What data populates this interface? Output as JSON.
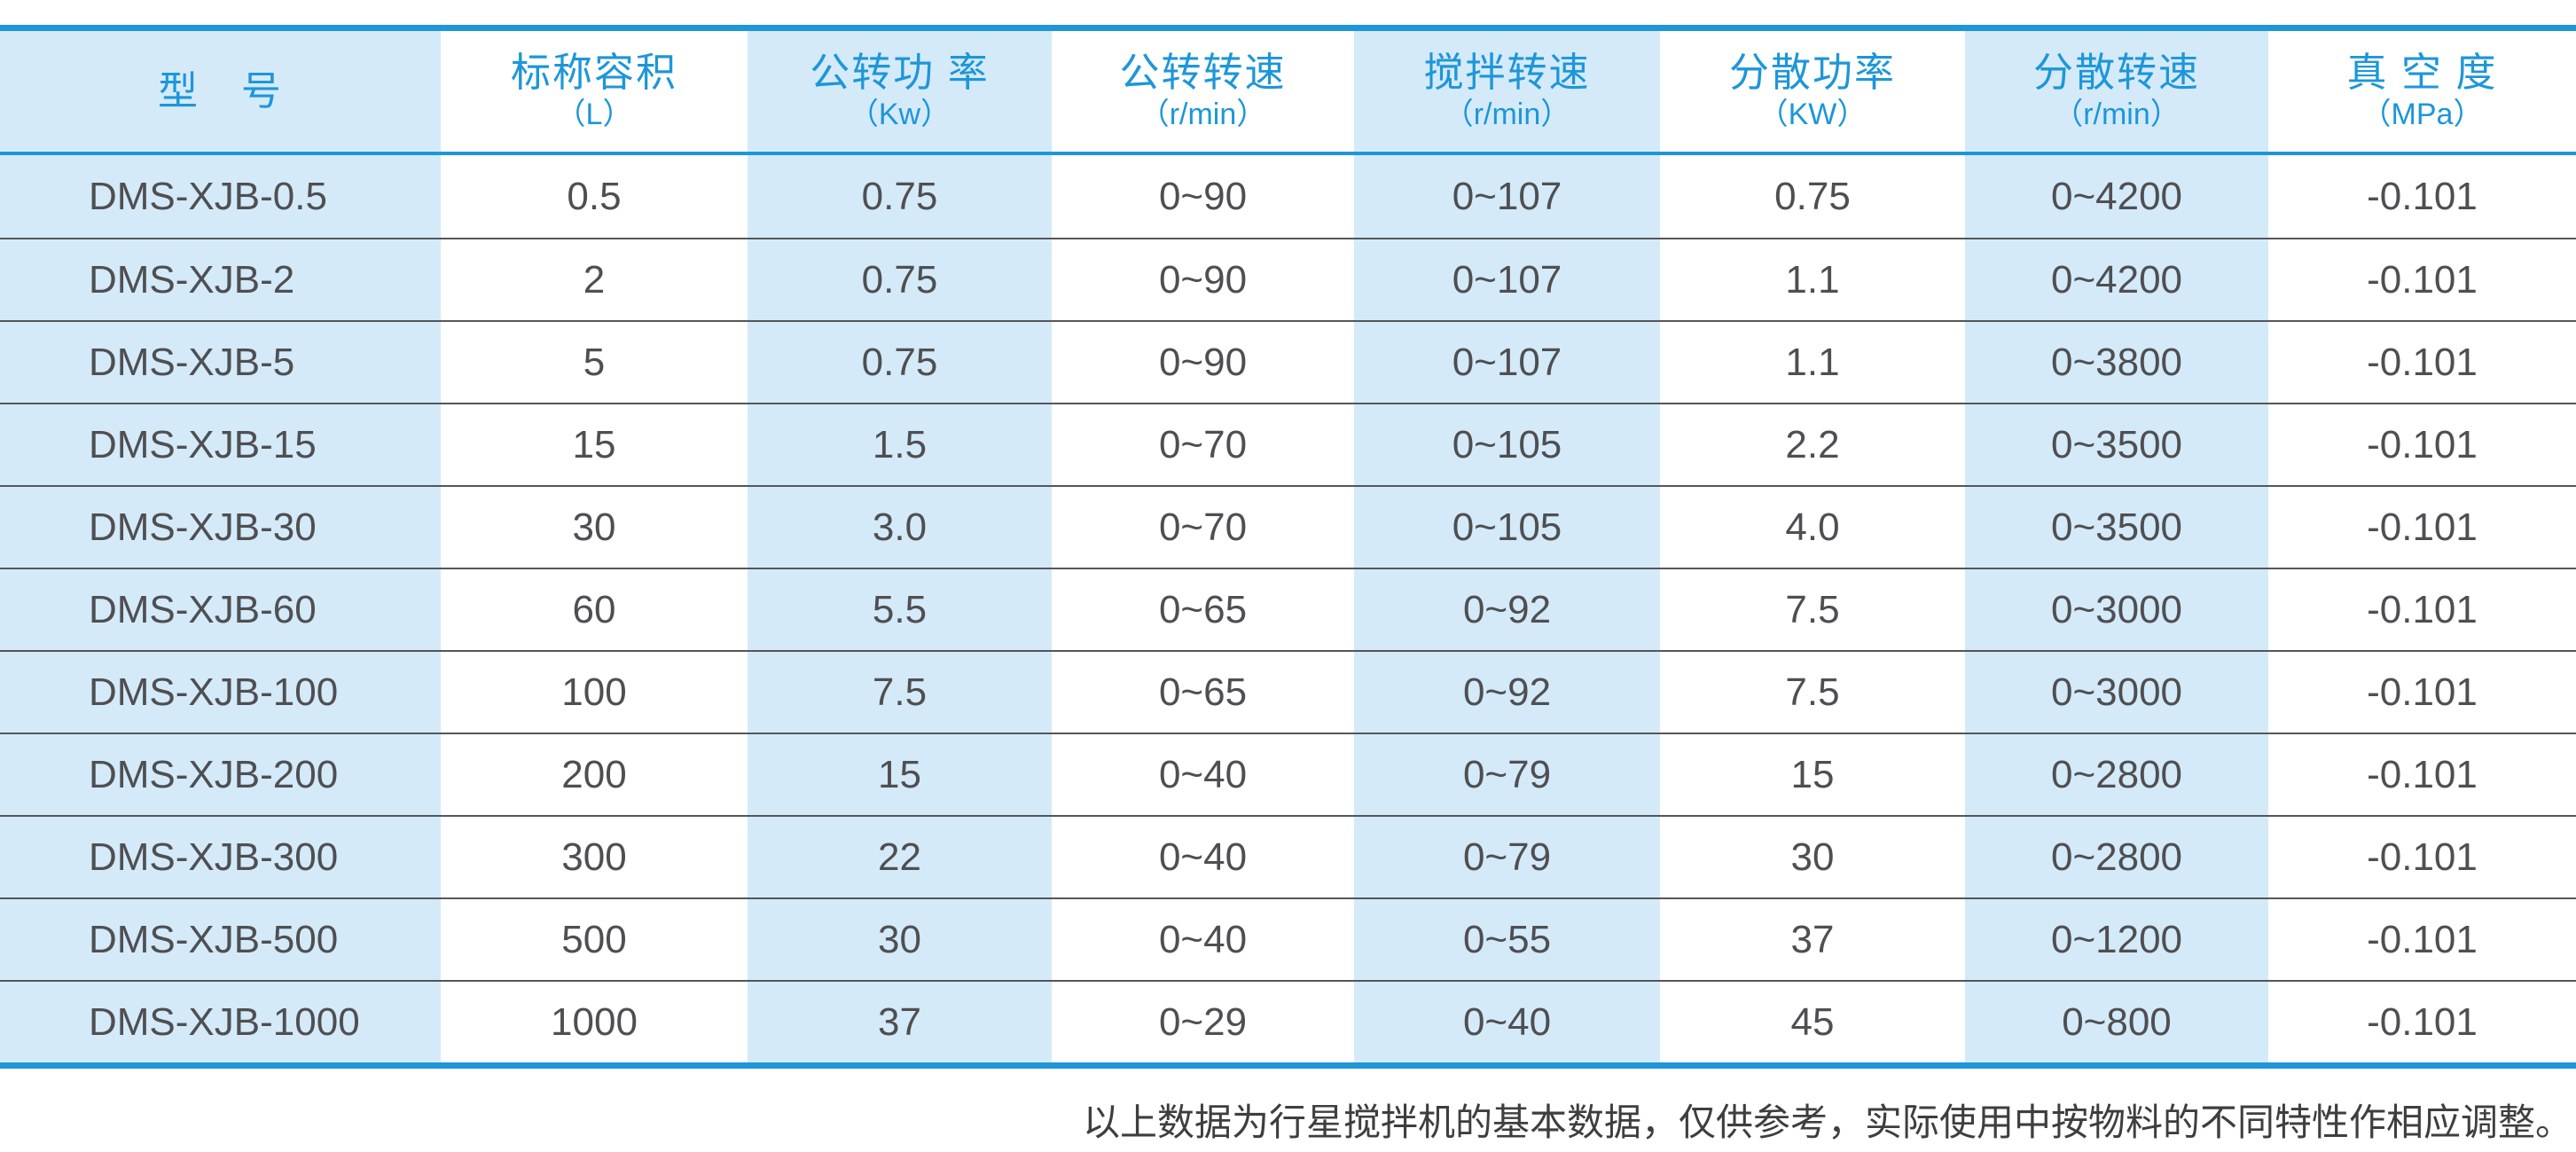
{
  "table": {
    "columns": [
      {
        "key": "model",
        "label": "型　号",
        "unit": ""
      },
      {
        "key": "nominal-capacity",
        "label": "标称容积",
        "unit": "（L）"
      },
      {
        "key": "revolution-power",
        "label": "公转功 率",
        "unit": "（Kw）"
      },
      {
        "key": "revolution-speed",
        "label": "公转转速",
        "unit": "（r/min）"
      },
      {
        "key": "stirring-speed",
        "label": "搅拌转速",
        "unit": "（r/min）"
      },
      {
        "key": "dispersion-power",
        "label": "分散功率",
        "unit": "（KW）"
      },
      {
        "key": "dispersion-speed",
        "label": "分散转速",
        "unit": "（r/min）"
      },
      {
        "key": "vacuum-degree",
        "label": "真 空 度",
        "unit": "（MPa）"
      }
    ],
    "rows": [
      [
        "DMS-XJB-0.5",
        "0.5",
        "0.75",
        "0~90",
        "0~107",
        "0.75",
        "0~4200",
        "-0.101"
      ],
      [
        "DMS-XJB-2",
        "2",
        "0.75",
        "0~90",
        "0~107",
        "1.1",
        "0~4200",
        "-0.101"
      ],
      [
        "DMS-XJB-5",
        "5",
        "0.75",
        "0~90",
        "0~107",
        "1.1",
        "0~3800",
        "-0.101"
      ],
      [
        "DMS-XJB-15",
        "15",
        "1.5",
        "0~70",
        "0~105",
        "2.2",
        "0~3500",
        "-0.101"
      ],
      [
        "DMS-XJB-30",
        "30",
        "3.0",
        "0~70",
        "0~105",
        "4.0",
        "0~3500",
        "-0.101"
      ],
      [
        "DMS-XJB-60",
        "60",
        "5.5",
        "0~65",
        "0~92",
        "7.5",
        "0~3000",
        "-0.101"
      ],
      [
        "DMS-XJB-100",
        "100",
        "7.5",
        "0~65",
        "0~92",
        "7.5",
        "0~3000",
        "-0.101"
      ],
      [
        "DMS-XJB-200",
        "200",
        "15",
        "0~40",
        "0~79",
        "15",
        "0~2800",
        "-0.101"
      ],
      [
        "DMS-XJB-300",
        "300",
        "22",
        "0~40",
        "0~79",
        "30",
        "0~2800",
        "-0.101"
      ],
      [
        "DMS-XJB-500",
        "500",
        "30",
        "0~40",
        "0~55",
        "37",
        "0~1200",
        "-0.101"
      ],
      [
        "DMS-XJB-1000",
        "1000",
        "37",
        "0~29",
        "0~40",
        "45",
        "0~800",
        "-0.101"
      ]
    ]
  },
  "footer": {
    "note": "以上数据为行星搅拌机的基本数据，仅供参考，实际使用中按物料的不同特性作相应调整。"
  },
  "colors": {
    "accent_blue": "#1e96d8",
    "band_light_blue": "#d4eaf9",
    "cell_text": "#4f4f52",
    "row_separator": "#55565a",
    "note_text": "#3e3e3e"
  }
}
